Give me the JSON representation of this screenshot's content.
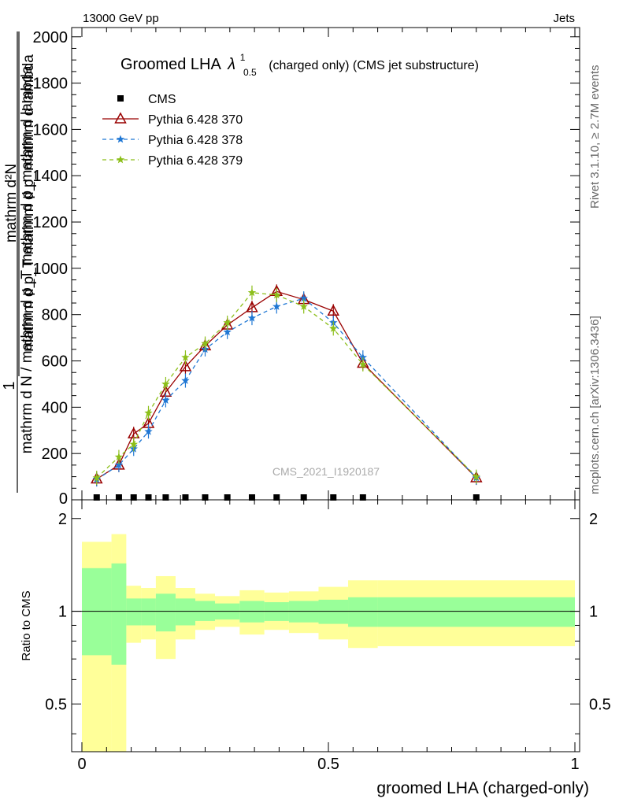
{
  "header": {
    "left": "13000 GeV pp",
    "right": "Jets"
  },
  "side_labels": {
    "rivet": "Rivet 3.1.10, ≥ 2.7M events",
    "mcplots": "mcplots.cern.ch [arXiv:1306.3436]"
  },
  "chart_data": [
    {
      "type": "line",
      "title_main": "Groomed LHA",
      "title_lambda": "λ",
      "title_sup": "1",
      "title_sub": "0.5",
      "title_rest": "(charged only) (CMS jet substructure)",
      "watermark": "CMS_2021_I1920187",
      "ylabel_numerator": "1",
      "ylabel_denominator": "mathrm d N / mathrm d p_T mathrm d p_mathrm d lambda",
      "ylabel_inner": "mathrm d²N",
      "ylabel_inner_denominator": "mathrm d p_T mathrm d p_mathrm d lambda",
      "xlim": [
        0,
        1
      ],
      "ylim": [
        0,
        2040
      ],
      "y_ticks": [
        "200",
        "400",
        "600",
        "800",
        "1000",
        "1200",
        "1400",
        "1600",
        "1800",
        "2000"
      ],
      "legend_position": "top-left",
      "series": [
        {
          "name": "CMS",
          "color": "#000000",
          "marker": "square",
          "x": [
            0.03,
            0.075,
            0.105,
            0.135,
            0.17,
            0.21,
            0.25,
            0.295,
            0.345,
            0.395,
            0.45,
            0.51,
            0.57,
            0.8
          ],
          "y": [
            3,
            3,
            3,
            3,
            3,
            3,
            3,
            3,
            3,
            3,
            3,
            3,
            3,
            3
          ]
        },
        {
          "name": "Pythia 6.428 370",
          "color": "#990000",
          "marker": "triangle-open",
          "dash": "",
          "x": [
            0.03,
            0.075,
            0.105,
            0.135,
            0.17,
            0.21,
            0.25,
            0.295,
            0.345,
            0.395,
            0.45,
            0.51,
            0.57,
            0.8
          ],
          "y": [
            90,
            150,
            285,
            330,
            465,
            575,
            665,
            755,
            830,
            900,
            865,
            815,
            590,
            95
          ]
        },
        {
          "name": "Pythia 6.428 378",
          "color": "#1f77d4",
          "marker": "star",
          "dash": "5,4",
          "x": [
            0.03,
            0.075,
            0.105,
            0.135,
            0.17,
            0.21,
            0.25,
            0.295,
            0.345,
            0.395,
            0.45,
            0.51,
            0.57,
            0.8
          ],
          "y": [
            88,
            150,
            220,
            295,
            430,
            515,
            650,
            725,
            785,
            835,
            870,
            765,
            615,
            95
          ]
        },
        {
          "name": "Pythia 6.428 379",
          "color": "#8cbf1a",
          "marker": "star",
          "dash": "5,4",
          "x": [
            0.03,
            0.075,
            0.105,
            0.135,
            0.17,
            0.21,
            0.25,
            0.295,
            0.345,
            0.395,
            0.45,
            0.51,
            0.57,
            0.8
          ],
          "y": [
            95,
            185,
            240,
            375,
            500,
            615,
            675,
            765,
            895,
            885,
            835,
            740,
            585,
            100
          ]
        }
      ]
    },
    {
      "type": "area",
      "ylabel": "Ratio to CMS",
      "xlabel": "groomed LHA (charged-only)",
      "log_y": true,
      "ylim": [
        0.35,
        2.3
      ],
      "y_ticks": [
        "0.5",
        "1",
        "2"
      ],
      "x_ticks": [
        "0",
        "0.5",
        "1"
      ],
      "reference_line": 1,
      "bins": [
        {
          "lo": 0.0,
          "hi": 0.06,
          "green": [
            0.72,
            1.38
          ],
          "yellow": [
            0.35,
            1.68
          ]
        },
        {
          "lo": 0.06,
          "hi": 0.09,
          "green": [
            0.67,
            1.43
          ],
          "yellow": [
            0.35,
            1.78
          ]
        },
        {
          "lo": 0.09,
          "hi": 0.12,
          "green": [
            0.9,
            1.1
          ],
          "yellow": [
            0.79,
            1.21
          ]
        },
        {
          "lo": 0.12,
          "hi": 0.15,
          "green": [
            0.9,
            1.1
          ],
          "yellow": [
            0.81,
            1.19
          ]
        },
        {
          "lo": 0.15,
          "hi": 0.19,
          "green": [
            0.86,
            1.14
          ],
          "yellow": [
            0.7,
            1.3
          ]
        },
        {
          "lo": 0.19,
          "hi": 0.23,
          "green": [
            0.9,
            1.1
          ],
          "yellow": [
            0.81,
            1.19
          ]
        },
        {
          "lo": 0.23,
          "hi": 0.27,
          "green": [
            0.93,
            1.08
          ],
          "yellow": [
            0.87,
            1.14
          ]
        },
        {
          "lo": 0.27,
          "hi": 0.32,
          "green": [
            0.94,
            1.06
          ],
          "yellow": [
            0.89,
            1.12
          ]
        },
        {
          "lo": 0.32,
          "hi": 0.37,
          "green": [
            0.92,
            1.08
          ],
          "yellow": [
            0.84,
            1.17
          ]
        },
        {
          "lo": 0.37,
          "hi": 0.42,
          "green": [
            0.93,
            1.07
          ],
          "yellow": [
            0.87,
            1.15
          ]
        },
        {
          "lo": 0.42,
          "hi": 0.48,
          "green": [
            0.92,
            1.08
          ],
          "yellow": [
            0.85,
            1.16
          ]
        },
        {
          "lo": 0.48,
          "hi": 0.54,
          "green": [
            0.91,
            1.09
          ],
          "yellow": [
            0.81,
            1.2
          ]
        },
        {
          "lo": 0.54,
          "hi": 0.6,
          "green": [
            0.89,
            1.11
          ],
          "yellow": [
            0.76,
            1.26
          ]
        },
        {
          "lo": 0.6,
          "hi": 1.0,
          "green": [
            0.89,
            1.11
          ],
          "yellow": [
            0.77,
            1.26
          ]
        }
      ]
    }
  ]
}
